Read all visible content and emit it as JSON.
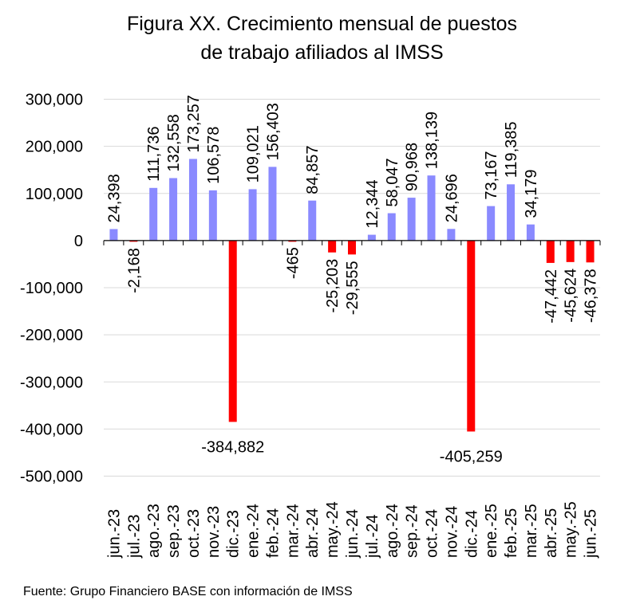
{
  "chart_data": {
    "type": "bar",
    "title_lines": [
      "Figura XX. Crecimiento mensual de puestos",
      "de trabajo afiliados al IMSS"
    ],
    "source": "Fuente: Grupo Financiero BASE con información de IMSS",
    "categories": [
      "jun.-23",
      "jul.-23",
      "ago.-23",
      "sep.-23",
      "oct.-23",
      "nov.-23",
      "dic.-23",
      "ene.-24",
      "feb.-24",
      "mar.-24",
      "abr.-24",
      "may.-24",
      "jun.-24",
      "jul.-24",
      "ago.-24",
      "sep.-24",
      "oct.-24",
      "nov.-24",
      "dic.-24",
      "ene.-25",
      "feb.-25",
      "mar.-25",
      "abr.-25",
      "may.-25",
      "jun.-25"
    ],
    "values": [
      24398,
      -2168,
      111736,
      132558,
      173257,
      106578,
      -384882,
      109021,
      156403,
      -465,
      84857,
      -25203,
      -29555,
      12344,
      58047,
      90968,
      138139,
      24696,
      -405259,
      73167,
      119385,
      34179,
      -47442,
      -45624,
      -46378
    ],
    "data_labels": [
      "24,398",
      "-2,168",
      "111,736",
      "132,558",
      "173,257",
      "106,578",
      "-384,882",
      "109,021",
      "156,403",
      "-465",
      "84,857",
      "-25,203",
      "-29,555",
      "12,344",
      "58,047",
      "90,968",
      "138,139",
      "24,696",
      "-405,259",
      "73,167",
      "119,385",
      "34,179",
      "-47,442",
      "-45,624",
      "-46,378"
    ],
    "y_ticks": [
      300000,
      200000,
      100000,
      0,
      -100000,
      -200000,
      -300000,
      -400000,
      -500000
    ],
    "y_tick_labels": [
      "300,000",
      "200,000",
      "100,000",
      "0",
      "-100,000",
      "-200,000",
      "-300,000",
      "-400,000",
      "-500,000"
    ],
    "ylim": [
      -500000,
      300000
    ],
    "grid": true,
    "legend": "none",
    "colors": {
      "positive": "#8a8aff",
      "negative": "#ff0000",
      "grid": "#d9d9d9",
      "axis": "#000000"
    }
  }
}
